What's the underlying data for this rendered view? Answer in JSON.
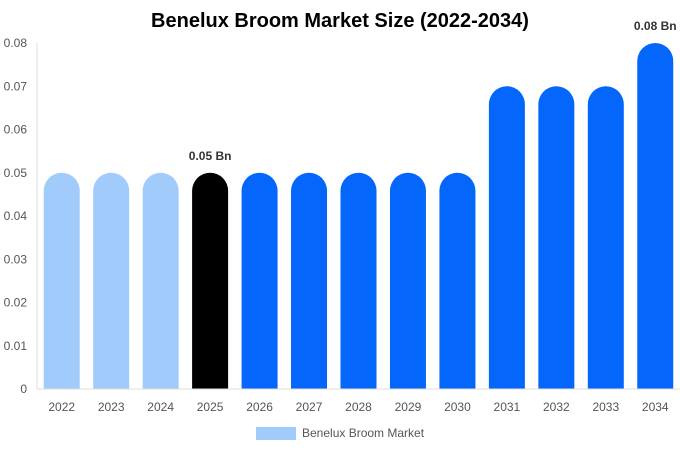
{
  "chart_data": {
    "type": "bar",
    "title": "Benelux Broom Market Size (2022-2034)",
    "xlabel": "",
    "ylabel": "",
    "categories": [
      "2022",
      "2023",
      "2024",
      "2025",
      "2026",
      "2027",
      "2028",
      "2029",
      "2030",
      "2031",
      "2032",
      "2033",
      "2034"
    ],
    "series": [
      {
        "name": "Benelux Broom Market",
        "values": [
          0.05,
          0.05,
          0.05,
          0.05,
          0.05,
          0.05,
          0.05,
          0.05,
          0.05,
          0.07,
          0.07,
          0.07,
          0.08
        ]
      }
    ],
    "bar_colors": [
      "#a0cbfb",
      "#a0cbfb",
      "#a0cbfb",
      "#000000",
      "#0466fb",
      "#0466fb",
      "#0466fb",
      "#0466fb",
      "#0466fb",
      "#0466fb",
      "#0466fb",
      "#0466fb",
      "#0466fb"
    ],
    "ylim": [
      0,
      0.08
    ],
    "yticks": [
      "0",
      "0.01",
      "0.02",
      "0.03",
      "0.04",
      "0.05",
      "0.06",
      "0.07",
      "0.08"
    ],
    "data_labels": [
      {
        "index": 3,
        "text": "0.05 Bn"
      },
      {
        "index": 12,
        "text": "0.08 Bn"
      }
    ],
    "legend": {
      "position": "bottom",
      "color": "#a0cbfb"
    },
    "grid": false
  }
}
